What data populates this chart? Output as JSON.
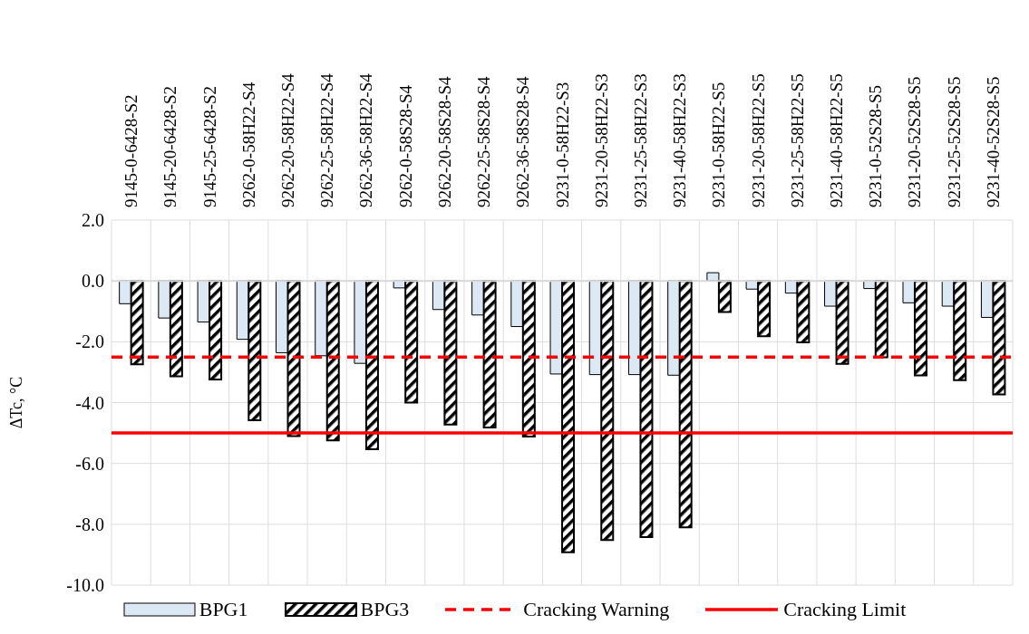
{
  "chart_data": {
    "type": "bar",
    "ylabel": "ΔTc, °C",
    "categories": [
      "9145-0-6428-S2",
      "9145-20-6428-S2",
      "9145-25-6428-S2",
      "9262-0-58H22-S4",
      "9262-20-58H22-S4",
      "9262-25-58H22-S4",
      "9262-36-58H22-S4",
      "9262-0-58S28-S4",
      "9262-20-58S28-S4",
      "9262-25-58S28-S4",
      "9262-36-58S28-S4",
      "9231-0-58H22-S3",
      "9231-20-58H22-S3",
      "9231-25-58H22-S3",
      "9231-40-58H22-S3",
      "9231-0-58H22-S5",
      "9231-20-58H22-S5",
      "9231-25-58H22-S5",
      "9231-40-58H22-S5",
      "9231-0-52S28-S5",
      "9231-20-52S28-S5",
      "9231-25-52S28-S5",
      "9231-40-52S28-S5"
    ],
    "series": [
      {
        "name": "BPG1",
        "color": "#dce8f4",
        "values": [
          -0.75,
          -1.22,
          -1.35,
          -1.92,
          -2.36,
          -2.46,
          -2.71,
          -0.23,
          -0.94,
          -1.12,
          -1.5,
          -3.06,
          -3.08,
          -3.08,
          -3.1,
          0.27,
          -0.27,
          -0.4,
          -0.83,
          -0.25,
          -0.72,
          -0.83,
          -1.2
        ]
      },
      {
        "name": "BPG3",
        "color": "#000000",
        "values": [
          -2.74,
          -3.14,
          -3.24,
          -4.58,
          -5.1,
          -5.24,
          -5.53,
          -4.0,
          -4.72,
          -4.82,
          -5.12,
          -8.92,
          -8.52,
          -8.42,
          -8.1,
          -1.02,
          -1.82,
          -2.02,
          -2.73,
          -2.51,
          -3.11,
          -3.26,
          -3.73
        ]
      }
    ],
    "ylim": [
      -10,
      2
    ],
    "yticks": [
      {
        "value": -10,
        "label": "-10.0"
      },
      {
        "value": -8,
        "label": "-8.0"
      },
      {
        "value": -6,
        "label": "-6.0"
      },
      {
        "value": -4,
        "label": "-4.0"
      },
      {
        "value": -2,
        "label": "-2.0"
      },
      {
        "value": 0,
        "label": "0.0"
      },
      {
        "value": 2,
        "label": "2.0"
      }
    ],
    "ref_lines": [
      {
        "axis": "y",
        "value": -2.5,
        "label": "Cracking Warning",
        "color": "#ff0000",
        "line_style": "dashed"
      },
      {
        "axis": "y",
        "value": -5,
        "label": "Cracking Limit",
        "color": "#ff0000",
        "line_style": "solid"
      }
    ],
    "grid": true,
    "legend": "bottom"
  }
}
